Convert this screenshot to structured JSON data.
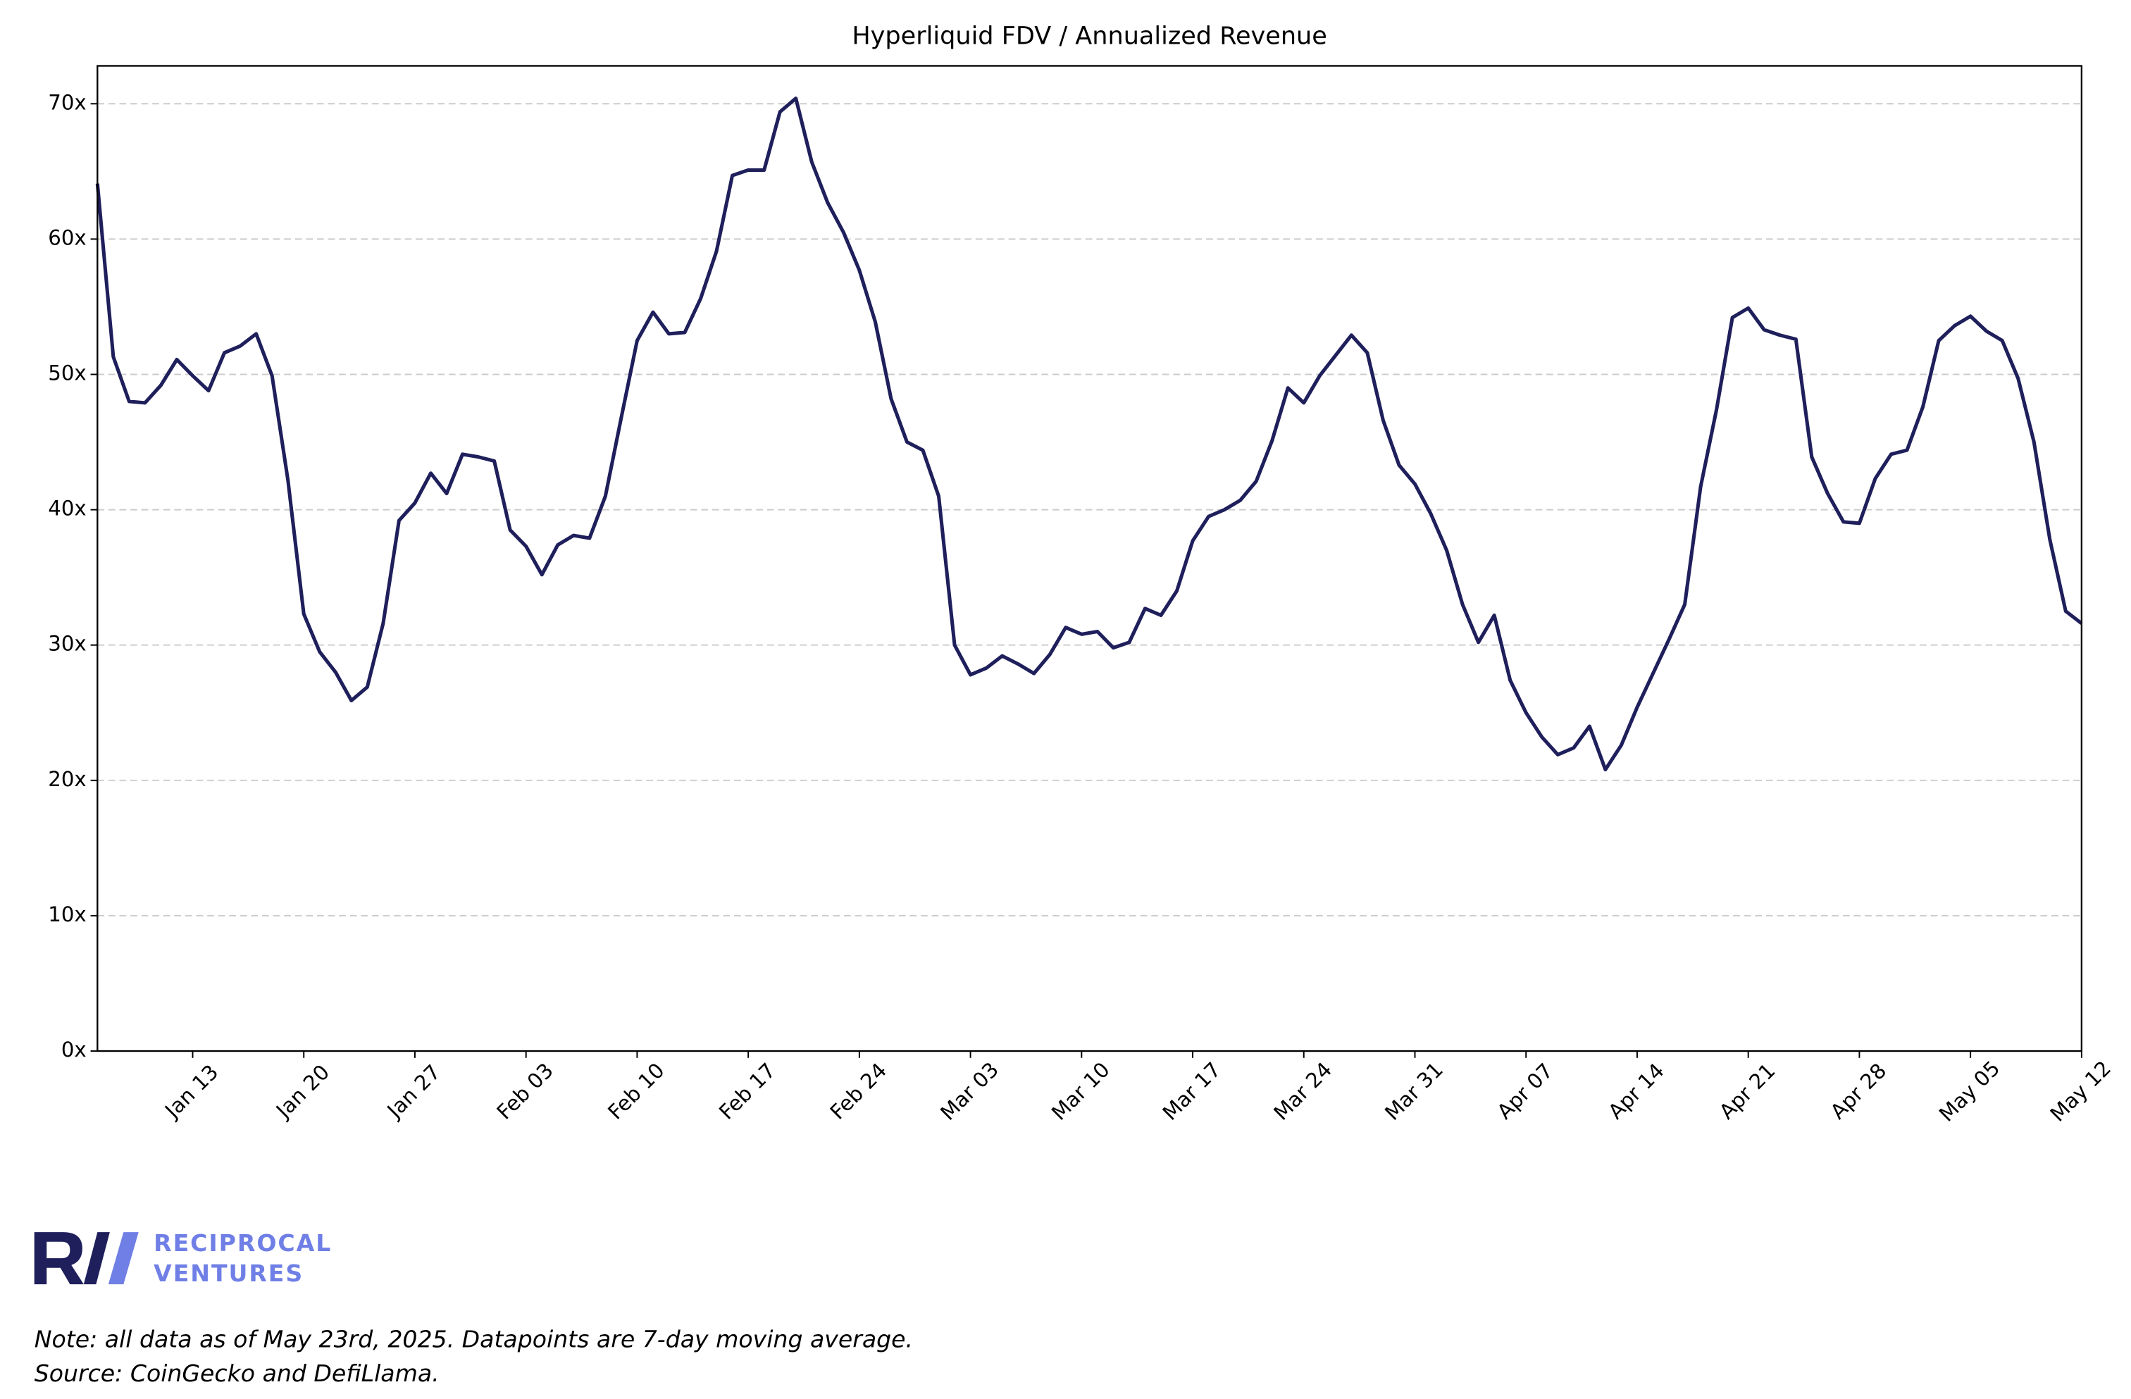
{
  "chart_data": {
    "type": "line",
    "title": "Hyperliquid FDV / Annualized Revenue",
    "x": [
      "Jan 07",
      "Jan 08",
      "Jan 09",
      "Jan 10",
      "Jan 11",
      "Jan 12",
      "Jan 13",
      "Jan 14",
      "Jan 15",
      "Jan 16",
      "Jan 17",
      "Jan 18",
      "Jan 19",
      "Jan 20",
      "Jan 21",
      "Jan 22",
      "Jan 23",
      "Jan 24",
      "Jan 25",
      "Jan 26",
      "Jan 27",
      "Jan 28",
      "Jan 29",
      "Jan 30",
      "Jan 31",
      "Feb 01",
      "Feb 02",
      "Feb 03",
      "Feb 04",
      "Feb 05",
      "Feb 06",
      "Feb 07",
      "Feb 08",
      "Feb 09",
      "Feb 10",
      "Feb 11",
      "Feb 12",
      "Feb 13",
      "Feb 14",
      "Feb 15",
      "Feb 16",
      "Feb 17",
      "Feb 18",
      "Feb 19",
      "Feb 20",
      "Feb 21",
      "Feb 22",
      "Feb 23",
      "Feb 24",
      "Feb 25",
      "Feb 26",
      "Feb 27",
      "Feb 28",
      "Mar 01",
      "Mar 02",
      "Mar 03",
      "Mar 04",
      "Mar 05",
      "Mar 06",
      "Mar 07",
      "Mar 08",
      "Mar 09",
      "Mar 10",
      "Mar 11",
      "Mar 12",
      "Mar 13",
      "Mar 14",
      "Mar 15",
      "Mar 16",
      "Mar 17",
      "Mar 18",
      "Mar 19",
      "Mar 20",
      "Mar 21",
      "Mar 22",
      "Mar 23",
      "Mar 24",
      "Mar 25",
      "Mar 26",
      "Mar 27",
      "Mar 28",
      "Mar 29",
      "Mar 30",
      "Mar 31",
      "Apr 01",
      "Apr 02",
      "Apr 03",
      "Apr 04",
      "Apr 05",
      "Apr 06",
      "Apr 07",
      "Apr 08",
      "Apr 09",
      "Apr 10",
      "Apr 11",
      "Apr 12",
      "Apr 13",
      "Apr 14",
      "Apr 15",
      "Apr 16",
      "Apr 17",
      "Apr 18",
      "Apr 19",
      "Apr 20",
      "Apr 21",
      "Apr 22",
      "Apr 23",
      "Apr 24",
      "Apr 25",
      "Apr 26",
      "Apr 27",
      "Apr 28",
      "Apr 29",
      "Apr 30",
      "May 01",
      "May 02",
      "May 03",
      "May 04",
      "May 05",
      "May 06",
      "May 07",
      "May 08",
      "May 09",
      "May 10",
      "May 11",
      "May 12"
    ],
    "series": [
      {
        "color": "#1f1f5c",
        "values": [
          64.1,
          51.3,
          48.0,
          47.9,
          49.2,
          51.1,
          49.9,
          48.8,
          51.6,
          52.1,
          53.0,
          49.9,
          42.2,
          32.3,
          29.5,
          28.0,
          25.9,
          26.9,
          31.6,
          39.2,
          40.5,
          42.7,
          41.2,
          44.1,
          43.9,
          43.6,
          38.5,
          37.3,
          35.2,
          37.4,
          38.1,
          37.9,
          41.0,
          46.8,
          52.5,
          54.6,
          53.0,
          53.1,
          55.6,
          59.1,
          64.7,
          65.1,
          65.1,
          69.4,
          70.4,
          65.7,
          62.7,
          60.5,
          57.7,
          53.9,
          48.2,
          45.0,
          44.4,
          41.0,
          30.0,
          27.8,
          28.3,
          29.2,
          28.6,
          27.9,
          29.3,
          31.3,
          30.8,
          31.0,
          29.8,
          30.2,
          32.7,
          32.2,
          34.0,
          37.7,
          39.5,
          40.0,
          40.7,
          42.1,
          45.1,
          49.0,
          47.9,
          49.9,
          51.4,
          52.9,
          51.6,
          46.6,
          43.3,
          41.9,
          39.7,
          37.0,
          33.0,
          30.2,
          32.2,
          27.4,
          25.0,
          23.2,
          21.9,
          22.4,
          24.0,
          20.8,
          22.6,
          25.4,
          27.9,
          30.4,
          33.0,
          41.7,
          47.4,
          54.2,
          54.9,
          53.3,
          52.9,
          52.6,
          43.9,
          41.2,
          39.1,
          39.0,
          42.3,
          44.1,
          44.4,
          47.6,
          52.5,
          53.6,
          54.3,
          53.2,
          52.5,
          49.7,
          45.0,
          37.8,
          32.5,
          31.6
        ]
      }
    ],
    "xticks": [
      "Jan 13",
      "Jan 20",
      "Jan 27",
      "Feb 03",
      "Feb 10",
      "Feb 17",
      "Feb 24",
      "Mar 03",
      "Mar 10",
      "Mar 17",
      "Mar 24",
      "Mar 31",
      "Apr 07",
      "Apr 14",
      "Apr 21",
      "Apr 28",
      "May 05",
      "May 12"
    ],
    "ylim": [
      0,
      72.8
    ],
    "yticks": [
      {
        "value": 0,
        "label": "0x"
      },
      {
        "value": 10,
        "label": "10x"
      },
      {
        "value": 20,
        "label": "20x"
      },
      {
        "value": 30,
        "label": "30x"
      },
      {
        "value": 40,
        "label": "40x"
      },
      {
        "value": 50,
        "label": "50x"
      },
      {
        "value": 60,
        "label": "60x"
      },
      {
        "value": 70,
        "label": "70x"
      }
    ],
    "grid": true
  },
  "logo": {
    "line1": "RECIPROCAL",
    "line2": "VENTURES"
  },
  "notes": [
    "Note: all data as of May 23rd, 2025. Datapoints are 7-day moving average.",
    "Source: CoinGecko and DefiLlama."
  ]
}
